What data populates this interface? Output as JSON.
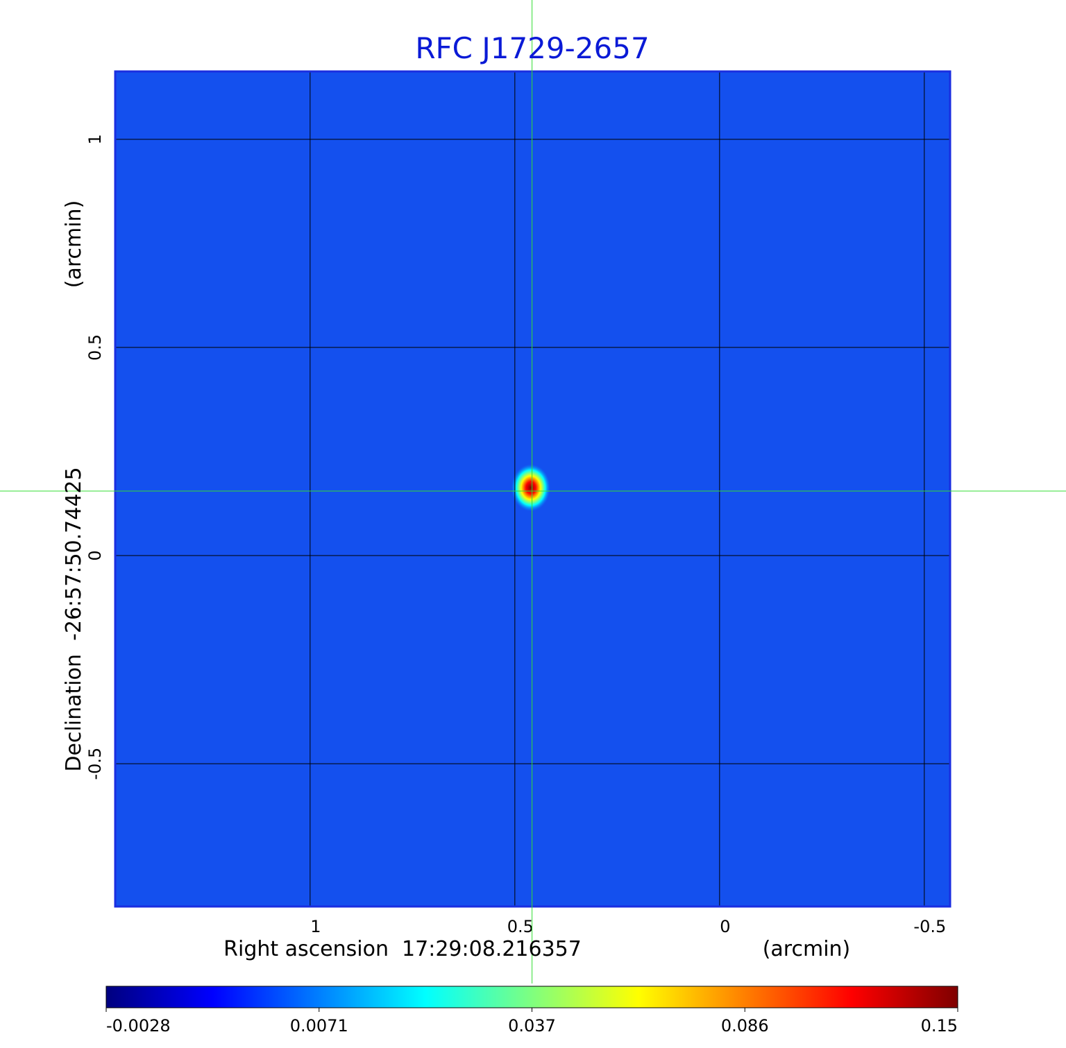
{
  "chart_data": {
    "type": "image",
    "title": "RFC J1729-2657",
    "xlabel": "Right ascension  17:29:08.216357",
    "xunit": "(arcmin)",
    "ylabel": "Declination  -26:57:50.74425",
    "yunit": "(arcmin)",
    "xlim": [
      1.476,
      -0.563
    ],
    "ylim": [
      -0.843,
      1.163
    ],
    "xticks": [
      1.0,
      0.5,
      0.0,
      -0.5
    ],
    "yticks": [
      1.0,
      0.5,
      0.0,
      -0.5
    ],
    "grid": true,
    "background_color": "#1450ee",
    "peak": {
      "x": 0.461,
      "y": 0.163,
      "value": 0.15
    },
    "crosshair": {
      "x": 0.458,
      "y": 0.155,
      "color": "#33dd33"
    },
    "colormap": [
      "#00007f",
      "#0000ff",
      "#007fff",
      "#00ffff",
      "#7fff7f",
      "#ffff00",
      "#ff7f00",
      "#ff0000",
      "#7f0000"
    ],
    "colorbar_ticks": [
      -0.0028,
      0.0071,
      0.037,
      0.086,
      0.15
    ]
  }
}
